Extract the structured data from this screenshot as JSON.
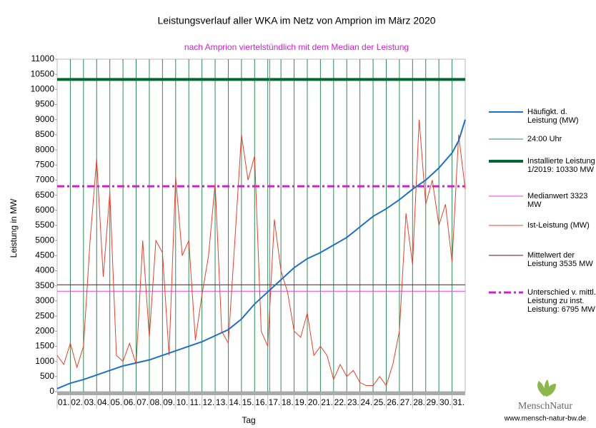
{
  "chart_data": {
    "type": "line",
    "title": "Leistungsverlauf aller WKA im Netz von Amprion im März 2020",
    "subtitle": "nach Amprion viertelstündlich mit dem Median der Leistung",
    "xlabel": "Tag",
    "ylabel": "Leistung in MW",
    "categories": [
      "01.",
      "02.",
      "03.",
      "04.",
      "05.",
      "06.",
      "07.",
      "08.",
      "09.",
      "10.",
      "11.",
      "12.",
      "13.",
      "14.",
      "15.",
      "16.",
      "17.",
      "18.",
      "19.",
      "20.",
      "21.",
      "22.",
      "23.",
      "24.",
      "25.",
      "26.",
      "27.",
      "28.",
      "29.",
      "30.",
      "31."
    ],
    "xlim": [
      0,
      31
    ],
    "ylim": [
      0,
      11000
    ],
    "yticks": [
      0,
      500,
      1000,
      1500,
      2000,
      2500,
      3000,
      3500,
      4000,
      4500,
      5000,
      5500,
      6000,
      6500,
      7000,
      7500,
      8000,
      8500,
      9000,
      9500,
      10000,
      10500,
      11000
    ],
    "series": [
      {
        "name": "Häufigkt. d. Leistung (MW)",
        "color": "#1f6fc5",
        "width": 2,
        "x": [
          0,
          1,
          2,
          3,
          4,
          5,
          6,
          7,
          8,
          9,
          10,
          11,
          12,
          13,
          14,
          15,
          16,
          17,
          18,
          19,
          20,
          21,
          22,
          23,
          24,
          25,
          26,
          27,
          28,
          29,
          30,
          30.5,
          31
        ],
        "values": [
          100,
          280,
          400,
          550,
          700,
          850,
          950,
          1050,
          1200,
          1350,
          1500,
          1650,
          1850,
          2050,
          2400,
          2900,
          3300,
          3700,
          4100,
          4400,
          4600,
          4850,
          5100,
          5450,
          5800,
          6050,
          6350,
          6700,
          7000,
          7400,
          7900,
          8300,
          9000
        ]
      },
      {
        "name": "24:00 Uhr",
        "color": "#2e8b57",
        "width": 1,
        "style": "day-lines"
      },
      {
        "name": "Installierte Leistung 1/2019: 10330 MW",
        "color": "#006633",
        "width": 4,
        "value": 10330
      },
      {
        "name": "Medianwert 3323 MW",
        "color": "#e040e0",
        "width": 1,
        "value": 3323,
        "vline": 16.15
      },
      {
        "name": "Ist-Leistung (MW)",
        "color": "#e8402a",
        "width": 1,
        "x": [
          0,
          0.5,
          1,
          1.5,
          2,
          2.5,
          3,
          3.5,
          4,
          4.5,
          5,
          5.5,
          6,
          6.5,
          7,
          7.5,
          8,
          8.5,
          9,
          9.5,
          10,
          10.5,
          11,
          11.5,
          12,
          12.5,
          13,
          13.5,
          14,
          14.5,
          15,
          15.5,
          16,
          16.5,
          17,
          17.5,
          18,
          18.5,
          19,
          19.5,
          20,
          20.5,
          21,
          21.5,
          22,
          22.5,
          23,
          23.5,
          24,
          24.5,
          25,
          25.5,
          26,
          26.5,
          27,
          27.5,
          28,
          28.5,
          29,
          29.5,
          30,
          30.5,
          31
        ],
        "values": [
          1200,
          900,
          1600,
          800,
          1500,
          5000,
          7700,
          3800,
          6600,
          1200,
          1000,
          1600,
          900,
          5000,
          1800,
          5000,
          4600,
          1200,
          7100,
          4500,
          5000,
          1700,
          3200,
          4500,
          6900,
          2000,
          1600,
          5000,
          8500,
          7000,
          7800,
          2000,
          1500,
          5700,
          4000,
          3300,
          2000,
          1800,
          2600,
          1200,
          1500,
          1200,
          400,
          900,
          500,
          700,
          300,
          200,
          200,
          500,
          200,
          900,
          2000,
          5900,
          4200,
          9000,
          6200,
          7000,
          5500,
          6200,
          4300,
          8500,
          6700
        ]
      },
      {
        "name": "Mittelwert der Leistung 3535 MW",
        "color": "#5a1030",
        "width": 1,
        "value": 3535
      },
      {
        "name": "Unterschied v. mittl. Leistung zu inst. Leistung: 6795 MW",
        "color": "#cc22cc",
        "width": 3,
        "value": 6795,
        "style": "dashed"
      }
    ]
  },
  "footer": {
    "brand": "MenschNatur",
    "url": "www.mensch-natur-bw.de"
  }
}
